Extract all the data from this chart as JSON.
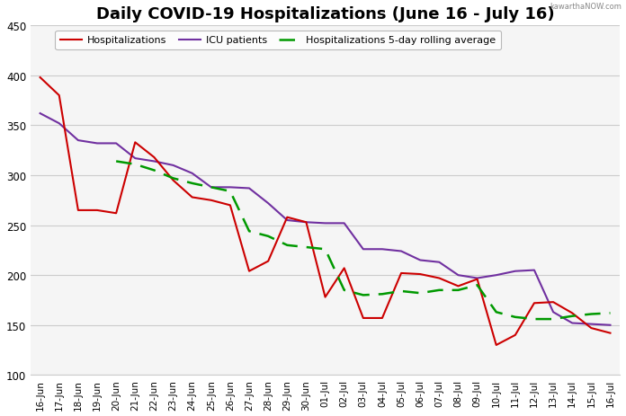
{
  "title": "Daily COVID-19 Hospitalizations (June 16 - July 16)",
  "watermark": "kawarthaNOW.com",
  "dates": [
    "16-Jun",
    "17-Jun",
    "18-Jun",
    "19-Jun",
    "20-Jun",
    "21-Jun",
    "22-Jun",
    "23-Jun",
    "24-Jun",
    "25-Jun",
    "26-Jun",
    "27-Jun",
    "28-Jun",
    "29-Jun",
    "30-Jun",
    "01-Jul",
    "02-Jul",
    "03-Jul",
    "04-Jul",
    "05-Jul",
    "06-Jul",
    "07-Jul",
    "08-Jul",
    "09-Jul",
    "10-Jul",
    "11-Jul",
    "12-Jul",
    "13-Jul",
    "14-Jul",
    "15-Jul",
    "16-Jul"
  ],
  "hospitalizations": [
    398,
    380,
    265,
    265,
    262,
    333,
    318,
    295,
    278,
    275,
    270,
    204,
    214,
    258,
    253,
    178,
    207,
    157,
    157,
    202,
    201,
    197,
    189,
    196,
    130,
    140,
    172,
    173,
    162,
    147,
    142
  ],
  "icu": [
    362,
    352,
    335,
    332,
    332,
    317,
    314,
    310,
    302,
    288,
    288,
    287,
    272,
    255,
    253,
    252,
    252,
    226,
    226,
    224,
    215,
    213,
    200,
    197,
    200,
    204,
    205,
    163,
    152,
    151,
    150
  ],
  "rolling_avg": [
    null,
    null,
    null,
    null,
    314,
    311,
    305,
    297,
    292,
    288,
    284,
    244,
    239,
    230,
    228,
    226,
    185,
    180,
    181,
    184,
    182,
    185,
    185,
    190,
    163,
    158,
    156,
    156,
    159,
    161,
    162
  ],
  "hosp_color": "#cc0000",
  "icu_color": "#7030a0",
  "rolling_color": "#009900",
  "ylim": [
    100,
    450
  ],
  "yticks": [
    100,
    150,
    200,
    250,
    300,
    350,
    400,
    450
  ],
  "bg_color": "#ffffff",
  "plot_bg_color": "#f5f5f5",
  "grid_color": "#cccccc",
  "legend_hosp": "Hospitalizations",
  "legend_icu": "ICU patients",
  "legend_rolling": "Hospitalizations 5-day rolling average"
}
